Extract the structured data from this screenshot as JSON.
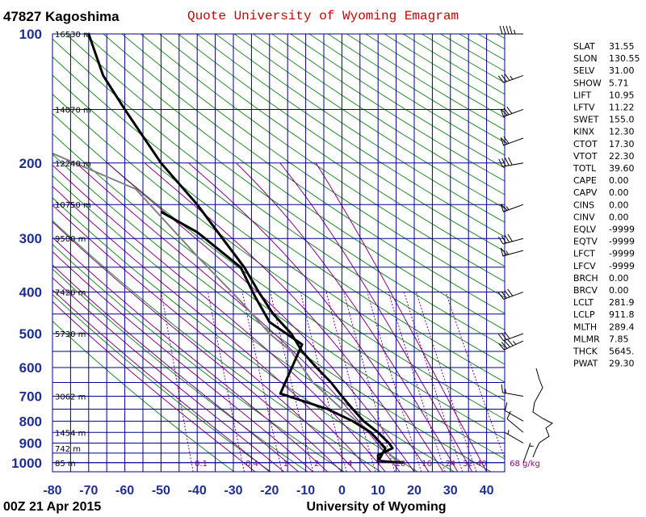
{
  "header": {
    "station": "47827  Kagoshima",
    "title": "Quote University of Wyoming Emagram"
  },
  "footer": {
    "time": "00Z 21 Apr 2015",
    "source": "University of Wyoming"
  },
  "colors": {
    "grid": "#00008b",
    "dry_adiabat": "#228b22",
    "moist_adiabat": "#8b008b",
    "mixing_ratio": "#8b008b",
    "sounding": "#000000",
    "parcel": "#808080",
    "title": "#cc0000",
    "axis_text": "#1f2f8f"
  },
  "chart_data": {
    "type": "line",
    "xlabel": "",
    "ylabel": "",
    "x_axis": {
      "min": -80,
      "max": 45,
      "ticks": [
        "-80",
        "-70",
        "-60",
        "-50",
        "-40",
        "-30",
        "-20",
        "-10",
        "0",
        "10",
        "20",
        "30",
        "40"
      ]
    },
    "y_axis": {
      "min": 100,
      "max": 1050,
      "scale": "log",
      "ticks": [
        "100",
        "200",
        "300",
        "400",
        "500",
        "600",
        "700",
        "800",
        "900",
        "1000"
      ]
    },
    "height_labels": [
      {
        "p": 100,
        "text": "16530 m"
      },
      {
        "p": 150,
        "text": "14070 m"
      },
      {
        "p": 200,
        "text": "12240 m"
      },
      {
        "p": 250,
        "text": "10750 m"
      },
      {
        "p": 300,
        "text": "9500 m"
      },
      {
        "p": 400,
        "text": "7420 m"
      },
      {
        "p": 500,
        "text": "5730 m"
      },
      {
        "p": 700,
        "text": "3062 m"
      },
      {
        "p": 850,
        "text": "1454 m"
      },
      {
        "p": 925,
        "text": "742 m"
      },
      {
        "p": 1000,
        "text": "85 m"
      }
    ],
    "mixing_ratio_labels": [
      "0.1",
      "0.4",
      "1",
      "2",
      "4",
      "7",
      "10",
      "16",
      "24",
      "32",
      "40",
      "68 g/kg"
    ],
    "series": [
      {
        "id": "temperature",
        "points": [
          [
            17,
            1000
          ],
          [
            13,
            995
          ],
          [
            10,
            990
          ],
          [
            10,
            960
          ],
          [
            14,
            925
          ],
          [
            13,
            900
          ],
          [
            10,
            850
          ],
          [
            6,
            800
          ],
          [
            3,
            750
          ],
          [
            0,
            700
          ],
          [
            -3,
            650
          ],
          [
            -7,
            600
          ],
          [
            -11,
            550
          ],
          [
            -14,
            500
          ],
          [
            -19,
            450
          ],
          [
            -23,
            400
          ],
          [
            -27,
            350
          ],
          [
            -33,
            300
          ],
          [
            -40,
            250
          ],
          [
            -50,
            200
          ],
          [
            -60,
            150
          ],
          [
            -66,
            125
          ],
          [
            -70,
            100
          ]
        ]
      },
      {
        "id": "dewpoint",
        "points": [
          [
            10,
            1000
          ],
          [
            10,
            995
          ],
          [
            11,
            960
          ],
          [
            12,
            925
          ],
          [
            8,
            850
          ],
          [
            3,
            800
          ],
          [
            -4,
            750
          ],
          [
            -17,
            690
          ],
          [
            -11,
            530
          ],
          [
            -20,
            470
          ],
          [
            -24,
            410
          ],
          [
            -28,
            350
          ],
          [
            -40,
            290
          ],
          [
            -50,
            260
          ]
        ]
      },
      {
        "id": "parcel",
        "points": [
          [
            17,
            1000
          ],
          [
            15,
            990
          ],
          [
            11,
            912
          ],
          [
            8,
            850
          ],
          [
            0,
            750
          ],
          [
            -8,
            650
          ],
          [
            -14,
            550
          ],
          [
            -20,
            500
          ],
          [
            -28,
            420
          ],
          [
            -40,
            330
          ],
          [
            -57,
            230
          ],
          [
            -80,
            190
          ]
        ]
      }
    ]
  },
  "indices": [
    {
      "name": "SLAT",
      "value": "31.55"
    },
    {
      "name": "SLON",
      "value": "130.55"
    },
    {
      "name": "SELV",
      "value": "31.00"
    },
    {
      "name": "SHOW",
      "value": "5.71"
    },
    {
      "name": "LIFT",
      "value": "10.95"
    },
    {
      "name": "LFTV",
      "value": "11.22"
    },
    {
      "name": "SWET",
      "value": "155.0"
    },
    {
      "name": "KINX",
      "value": "12.30"
    },
    {
      "name": "CTOT",
      "value": "17.30"
    },
    {
      "name": "VTOT",
      "value": "22.30"
    },
    {
      "name": "TOTL",
      "value": "39.60"
    },
    {
      "name": "CAPE",
      "value": "0.00"
    },
    {
      "name": "CAPV",
      "value": "0.00"
    },
    {
      "name": "CINS",
      "value": "0.00"
    },
    {
      "name": "CINV",
      "value": "0.00"
    },
    {
      "name": "EQLV",
      "value": "-9999"
    },
    {
      "name": "EQTV",
      "value": "-9999"
    },
    {
      "name": "LFCT",
      "value": "-9999"
    },
    {
      "name": "LFCV",
      "value": "-9999"
    },
    {
      "name": "BRCH",
      "value": "0.00"
    },
    {
      "name": "BRCV",
      "value": "0.00"
    },
    {
      "name": "LCLT",
      "value": "281.9"
    },
    {
      "name": "LCLP",
      "value": "911.8"
    },
    {
      "name": "MLTH",
      "value": "289.4"
    },
    {
      "name": "MLMR",
      "value": "7.85"
    },
    {
      "name": "THCK",
      "value": "5645."
    },
    {
      "name": "PWAT",
      "value": "29.30"
    }
  ],
  "wind_profile": [
    {
      "p": 100,
      "dir": 270,
      "kt": 45
    },
    {
      "p": 125,
      "dir": 250,
      "kt": 35
    },
    {
      "p": 150,
      "dir": 250,
      "kt": 70
    },
    {
      "p": 175,
      "dir": 250,
      "kt": 60
    },
    {
      "p": 200,
      "dir": 260,
      "kt": 40
    },
    {
      "p": 250,
      "dir": 250,
      "kt": 55
    },
    {
      "p": 300,
      "dir": 255,
      "kt": 40
    },
    {
      "p": 320,
      "dir": 255,
      "kt": 55
    },
    {
      "p": 400,
      "dir": 250,
      "kt": 40
    },
    {
      "p": 500,
      "dir": 250,
      "kt": 30
    },
    {
      "p": 520,
      "dir": 245,
      "kt": 45
    },
    {
      "p": 700,
      "dir": 280,
      "kt": 15
    },
    {
      "p": 800,
      "dir": 300,
      "kt": 10
    },
    {
      "p": 850,
      "dir": 310,
      "kt": 10
    },
    {
      "p": 900,
      "dir": 300,
      "kt": 5
    },
    {
      "p": 1000,
      "dir": 20,
      "kt": 5
    }
  ]
}
